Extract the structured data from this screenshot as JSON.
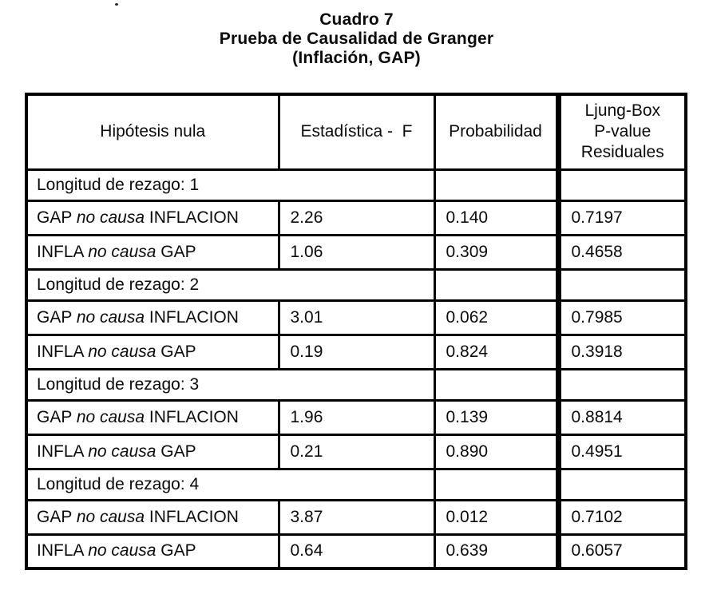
{
  "title": {
    "line1": "Cuadro 7",
    "line2": "Prueba de Causalidad de Granger",
    "line3": "(Inflación, GAP)"
  },
  "table": {
    "headers": [
      "Hipótesis nula",
      "Estadística -  F",
      "Probabilidad",
      "Ljung-Box\nP-value\nResiduales"
    ],
    "sections": [
      {
        "label": "Longitud de rezago: 1",
        "rows": [
          {
            "subject": "GAP",
            "verb": "no causa",
            "object": "INFLACION",
            "f_stat": "2.26",
            "probability": "0.140",
            "ljung_box": "0.7197"
          },
          {
            "subject": "INFLA",
            "verb": "no causa",
            "object": "GAP",
            "f_stat": "1.06",
            "probability": "0.309",
            "ljung_box": "0.4658"
          }
        ]
      },
      {
        "label": "Longitud de rezago: 2",
        "rows": [
          {
            "subject": "GAP",
            "verb": "no causa",
            "object": "INFLACION",
            "f_stat": "3.01",
            "probability": "0.062",
            "ljung_box": "0.7985"
          },
          {
            "subject": "INFLA",
            "verb": "no causa",
            "object": "GAP",
            "f_stat": "0.19",
            "probability": "0.824",
            "ljung_box": "0.3918"
          }
        ]
      },
      {
        "label": "Longitud de rezago: 3",
        "rows": [
          {
            "subject": "GAP",
            "verb": "no causa",
            "object": "INFLACION",
            "f_stat": "1.96",
            "probability": "0.139",
            "ljung_box": "0.8814"
          },
          {
            "subject": "INFLA",
            "verb": "no causa",
            "object": "GAP",
            "f_stat": "0.21",
            "probability": "0.890",
            "ljung_box": "0.4951"
          }
        ]
      },
      {
        "label": "Longitud de rezago: 4",
        "rows": [
          {
            "subject": "GAP",
            "verb": "no causa",
            "object": "INFLACION",
            "f_stat": "3.87",
            "probability": "0.012",
            "ljung_box": "0.7102"
          },
          {
            "subject": "INFLA",
            "verb": "no causa",
            "object": "GAP",
            "f_stat": "0.64",
            "probability": "0.639",
            "ljung_box": "0.6057"
          }
        ]
      }
    ]
  },
  "colors": {
    "ink": "#0b0b0b",
    "paper": "#ffffff"
  }
}
